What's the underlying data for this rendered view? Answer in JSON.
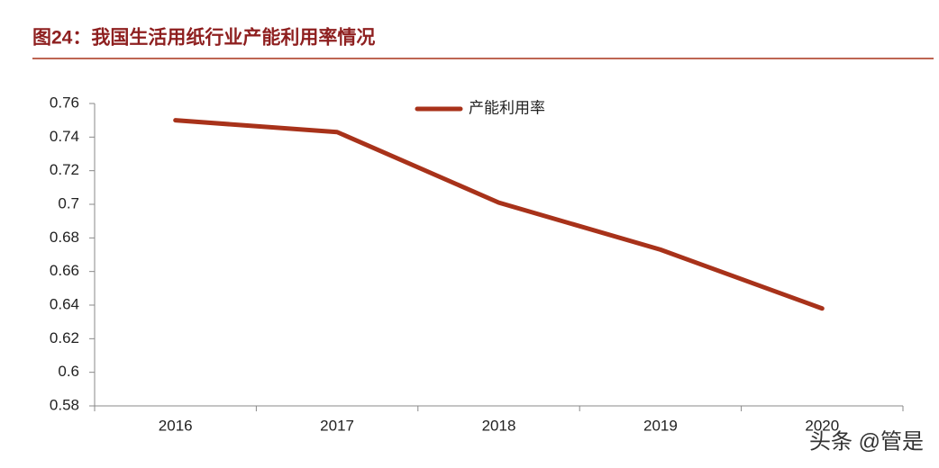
{
  "chart_data": {
    "type": "line",
    "title": "图24：我国生活用纸行业产能利用率情况",
    "categories": [
      "2016",
      "2017",
      "2018",
      "2019",
      "2020"
    ],
    "series": [
      {
        "name": "产能利用率",
        "color": "#a8321a",
        "values": [
          0.75,
          0.743,
          0.701,
          0.673,
          0.638
        ]
      }
    ],
    "ylim": [
      0.58,
      0.76
    ],
    "yticks": [
      0.58,
      0.6,
      0.62,
      0.64,
      0.66,
      0.68,
      0.7,
      0.72,
      0.74,
      0.76
    ],
    "grid": false,
    "legend": "top",
    "watermark": "头条 @管是"
  }
}
